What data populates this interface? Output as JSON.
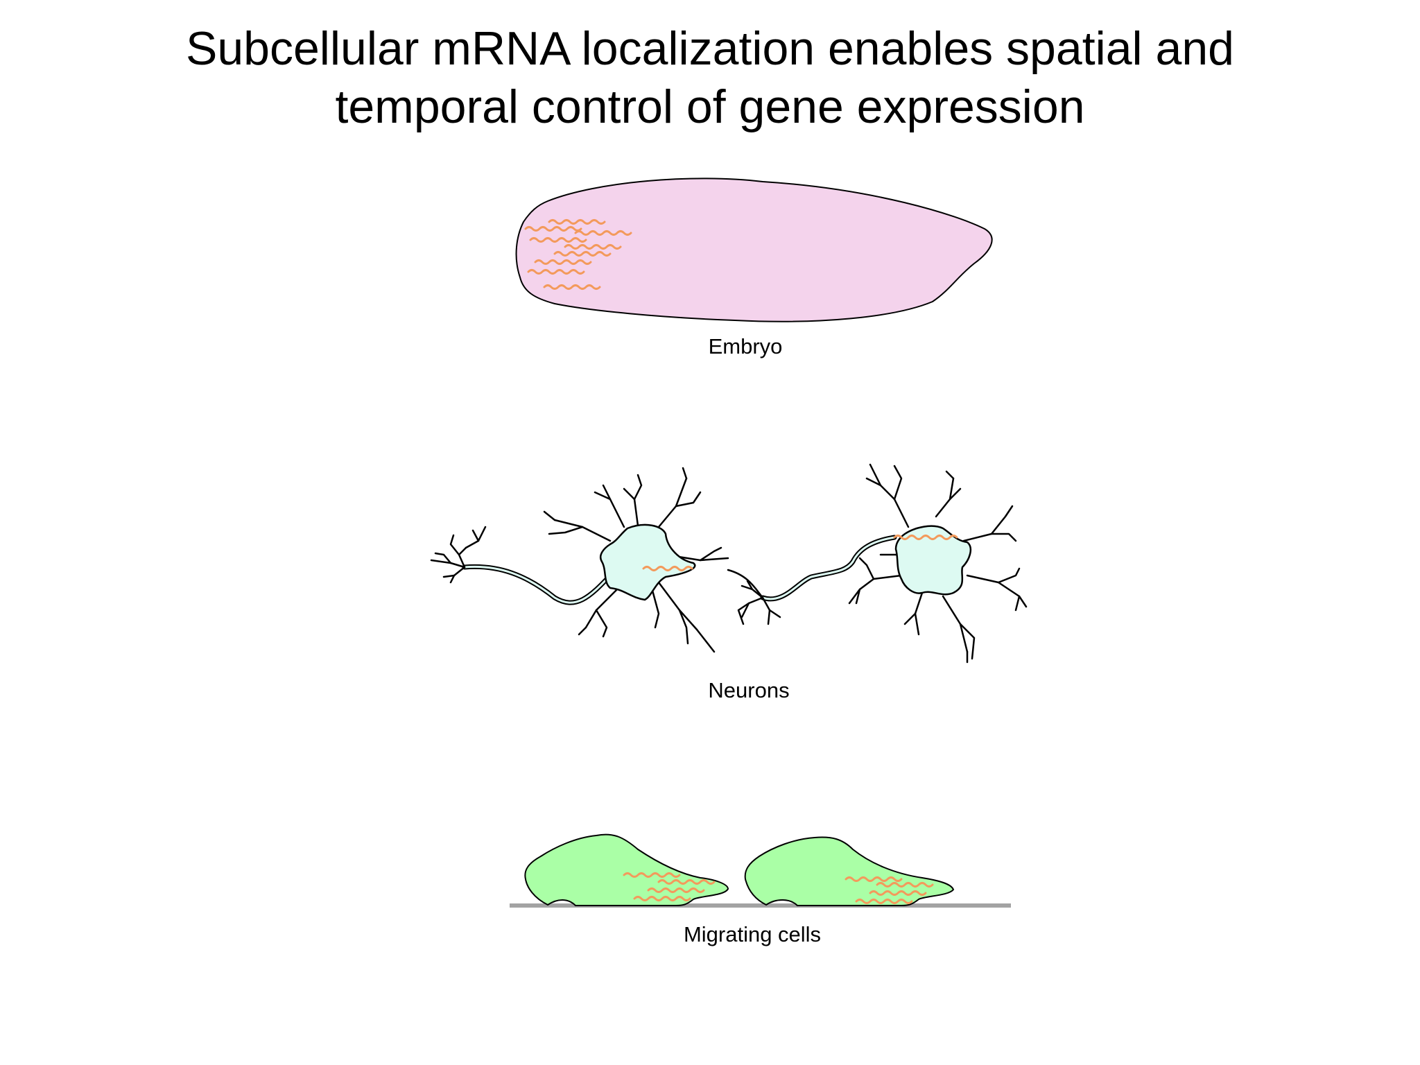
{
  "title": {
    "line1": "Subcellular mRNA localization enables spatial and",
    "line2": "temporal control of gene expression"
  },
  "panels": {
    "embryo": {
      "label": "Embryo"
    },
    "neurons": {
      "label": "Neurons"
    },
    "migrating_cells": {
      "label": "Migrating cells"
    }
  },
  "colors": {
    "mrna": "#f39a5c",
    "embryo_fill": "#f4d3ec",
    "neuron_fill": "#ddfaf2",
    "neuron_nucleus_glow": "#f7d9d4",
    "cell_fill": "#aaffa6",
    "substrate": "#a3a3a3"
  }
}
